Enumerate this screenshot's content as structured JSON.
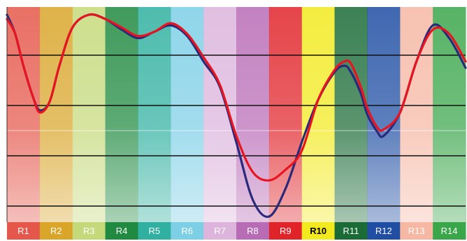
{
  "chart_data": {
    "type": "line",
    "categories": [
      "R1",
      "R2",
      "R3",
      "R4",
      "R5",
      "R6",
      "R7",
      "R8",
      "R9",
      "R10",
      "R11",
      "R12",
      "R13",
      "R14"
    ],
    "category_colors": [
      "#e5574a",
      "#d9a62a",
      "#c5d97a",
      "#1f8a40",
      "#2fb0a0",
      "#7dcfe6",
      "#dcb4dc",
      "#b96cb6",
      "#e0242a",
      "#f2ea1e",
      "#1a6b36",
      "#1f4ea3",
      "#f6b7a3",
      "#3aa64a"
    ],
    "label_colors": [
      "#ffffff",
      "#ffffff",
      "#ffffff",
      "#ffffff",
      "#ffffff",
      "#ffffff",
      "#ffffff",
      "#ffffff",
      "#ffffff",
      "#000000",
      "#ffffff",
      "#ffffff",
      "#ffffff",
      "#ffffff"
    ],
    "label_bold": [
      "R10"
    ],
    "x_tick_labels_visible": true,
    "y_tick_labels_visible": false,
    "grid": true,
    "legend": false,
    "ylim": [
      0,
      100
    ],
    "series": [
      {
        "color": "#e8141f",
        "x": [
          0,
          0.25,
          0.5,
          0.8,
          1,
          1.3,
          1.6,
          2,
          2.5,
          3,
          3.5,
          4,
          4.5,
          5,
          5.5,
          6,
          6.5,
          7,
          7.5,
          8,
          8.5,
          9,
          9.5,
          10,
          10.3,
          10.5,
          10.8,
          11,
          11.3,
          11.5,
          12,
          12.5,
          13,
          13.5,
          14
        ],
        "values": [
          95,
          88,
          73,
          58,
          51,
          56,
          73,
          91,
          97,
          95,
          91,
          87,
          89,
          93,
          88,
          77,
          64,
          40,
          23,
          19,
          24,
          33,
          57,
          71,
          75,
          74,
          63,
          53,
          44,
          43,
          51,
          75,
          90,
          88,
          75
        ]
      },
      {
        "color": "#2a2a7a",
        "x": [
          0,
          0.25,
          0.5,
          0.8,
          1,
          1.3,
          1.6,
          2,
          2.5,
          3,
          3.5,
          4,
          4.5,
          5,
          5.5,
          6,
          6.5,
          7,
          7.5,
          8,
          8.5,
          9,
          9.5,
          10,
          10.3,
          10.5,
          10.8,
          11,
          11.3,
          11.5,
          12,
          12.5,
          13,
          13.5,
          14
        ],
        "values": [
          97,
          88,
          73,
          58,
          52,
          56,
          73,
          91,
          97,
          95,
          90,
          86,
          89,
          92,
          87,
          75,
          63,
          37,
          10,
          2,
          15,
          37,
          57,
          70,
          73,
          70,
          60,
          50,
          42,
          40,
          51,
          75,
          92,
          86,
          72
        ]
      }
    ]
  }
}
